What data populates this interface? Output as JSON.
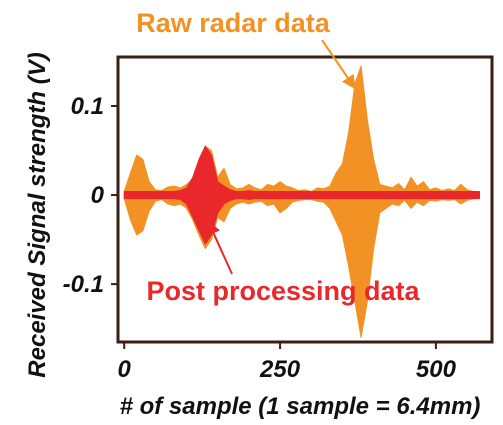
{
  "chart_data": {
    "type": "area",
    "xlabel": "# of sample (1 sample = 6.4mm)",
    "ylabel": "Received Signal strength (V)",
    "xlim": [
      -10,
      590
    ],
    "ylim": [
      -0.165,
      0.155
    ],
    "x_ticks": [
      0,
      250,
      500
    ],
    "x_tick_labels": [
      "0",
      "250",
      "500"
    ],
    "y_ticks": [
      0.1,
      0,
      -0.1
    ],
    "y_tick_labels": [
      "0.1",
      "0",
      "-0.1"
    ],
    "grid": false,
    "legend": "none",
    "series": [
      {
        "name": "Raw radar data",
        "color": "#F39224",
        "x": [
          0,
          10,
          20,
          30,
          40,
          50,
          60,
          70,
          80,
          90,
          100,
          110,
          120,
          130,
          140,
          150,
          160,
          170,
          180,
          190,
          200,
          210,
          220,
          230,
          240,
          250,
          260,
          270,
          280,
          290,
          300,
          310,
          320,
          330,
          340,
          350,
          360,
          370,
          380,
          390,
          400,
          410,
          420,
          430,
          440,
          450,
          460,
          470,
          480,
          490,
          500,
          510,
          520,
          530,
          540,
          550,
          560,
          570
        ],
        "upper": [
          0.004,
          0.025,
          0.045,
          0.04,
          0.015,
          0.006,
          0.005,
          0.009,
          0.01,
          0.008,
          0.012,
          0.018,
          0.03,
          0.055,
          0.05,
          0.02,
          0.03,
          0.012,
          0.007,
          0.008,
          0.012,
          0.008,
          0.006,
          0.012,
          0.01,
          0.015,
          0.01,
          0.008,
          0.005,
          0.006,
          0.004,
          0.008,
          0.007,
          0.01,
          0.025,
          0.035,
          0.07,
          0.125,
          0.145,
          0.085,
          0.04,
          0.012,
          0.01,
          0.008,
          0.013,
          0.006,
          0.02,
          0.01,
          0.015,
          0.006,
          0.008,
          0.005,
          0.007,
          0.005,
          0.012,
          0.006,
          0.004,
          0.003
        ],
        "lower": [
          -0.004,
          -0.028,
          -0.045,
          -0.04,
          -0.018,
          -0.007,
          -0.005,
          -0.01,
          -0.012,
          -0.01,
          -0.015,
          -0.028,
          -0.045,
          -0.06,
          -0.05,
          -0.025,
          -0.03,
          -0.015,
          -0.01,
          -0.008,
          -0.01,
          -0.008,
          -0.007,
          -0.012,
          -0.01,
          -0.02,
          -0.015,
          -0.008,
          -0.006,
          -0.005,
          -0.005,
          -0.007,
          -0.008,
          -0.015,
          -0.03,
          -0.045,
          -0.08,
          -0.12,
          -0.16,
          -0.12,
          -0.06,
          -0.02,
          -0.015,
          -0.01,
          -0.012,
          -0.006,
          -0.015,
          -0.008,
          -0.012,
          -0.006,
          -0.007,
          -0.005,
          -0.006,
          -0.005,
          -0.01,
          -0.006,
          -0.004,
          -0.003
        ]
      },
      {
        "name": "Post processing data",
        "color": "#E8282A",
        "x": [
          0,
          10,
          20,
          30,
          40,
          50,
          60,
          70,
          80,
          90,
          100,
          110,
          120,
          130,
          140,
          150,
          160,
          170,
          180,
          190,
          200,
          210,
          220,
          230,
          240,
          250,
          260,
          270,
          280,
          290,
          300,
          310,
          320,
          330,
          340,
          350,
          360,
          370,
          380,
          390,
          400,
          410,
          420,
          430,
          440,
          450,
          460,
          470,
          480,
          490,
          500,
          510,
          520,
          530,
          540,
          550,
          560,
          570
        ],
        "upper": [
          0.004,
          0.004,
          0.004,
          0.004,
          0.004,
          0.004,
          0.004,
          0.004,
          0.004,
          0.005,
          0.008,
          0.02,
          0.04,
          0.055,
          0.045,
          0.015,
          0.01,
          0.006,
          0.004,
          0.004,
          0.005,
          0.004,
          0.004,
          0.004,
          0.004,
          0.004,
          0.004,
          0.004,
          0.004,
          0.004,
          0.004,
          0.004,
          0.004,
          0.004,
          0.004,
          0.004,
          0.004,
          0.004,
          0.004,
          0.004,
          0.004,
          0.004,
          0.004,
          0.004,
          0.004,
          0.004,
          0.004,
          0.004,
          0.004,
          0.004,
          0.004,
          0.004,
          0.004,
          0.004,
          0.004,
          0.004,
          0.004,
          0.004
        ],
        "lower": [
          -0.004,
          -0.004,
          -0.004,
          -0.004,
          -0.004,
          -0.004,
          -0.004,
          -0.004,
          -0.004,
          -0.005,
          -0.01,
          -0.025,
          -0.04,
          -0.055,
          -0.045,
          -0.02,
          -0.01,
          -0.006,
          -0.004,
          -0.004,
          -0.005,
          -0.004,
          -0.004,
          -0.004,
          -0.004,
          -0.004,
          -0.004,
          -0.004,
          -0.004,
          -0.004,
          -0.004,
          -0.004,
          -0.004,
          -0.004,
          -0.004,
          -0.004,
          -0.004,
          -0.004,
          -0.004,
          -0.004,
          -0.004,
          -0.004,
          -0.004,
          -0.004,
          -0.004,
          -0.004,
          -0.004,
          -0.004,
          -0.004,
          -0.004,
          -0.004,
          -0.004,
          -0.004,
          -0.004,
          -0.004,
          -0.004,
          -0.004,
          -0.004
        ]
      }
    ],
    "annotations": [
      {
        "id": "raw",
        "text": "Raw radar data",
        "color": "#F39224",
        "arrow_to": {
          "x": 370,
          "y": 0.12
        }
      },
      {
        "id": "post",
        "text": "Post processing data",
        "color": "#E8282A",
        "arrow_to": {
          "x": 135,
          "y": -0.03
        }
      }
    ]
  }
}
